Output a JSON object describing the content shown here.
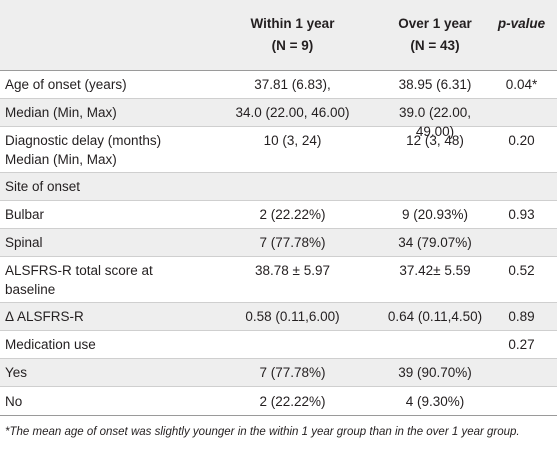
{
  "header": {
    "col1_title": "Within 1 year",
    "col1_n": "(N = 9)",
    "col2_title": "Over 1 year",
    "col2_n": "(N = 43)",
    "col3_title": "p-value"
  },
  "rows": [
    {
      "label": "Age of onset (years)",
      "within": "37.81 (6.83),",
      "over": "38.95 (6.31)",
      "p": "0.04*"
    },
    {
      "label": "Median (Min, Max)",
      "within": "34.0 (22.00, 46.00)",
      "over": "39.0 (22.00, 49.00)",
      "p": ""
    },
    {
      "label": "Diagnostic delay (months)",
      "label2": "Median (Min, Max)",
      "within": "10 (3, 24)",
      "over": "12 (3, 48)",
      "p": "0.20"
    },
    {
      "label": "Site of onset",
      "within": "",
      "over": "",
      "p": ""
    },
    {
      "label": "Bulbar",
      "within": "2 (22.22%)",
      "over": "9 (20.93%)",
      "p": "0.93"
    },
    {
      "label": "Spinal",
      "within": "7 (77.78%)",
      "over": "34 (79.07%)",
      "p": ""
    },
    {
      "label": "ALSFRS-R total score at",
      "label2": "baseline",
      "within": "38.78 ± 5.97",
      "over": "37.42± 5.59",
      "p": "0.52"
    },
    {
      "label": "Δ ALSFRS-R",
      "within": "0.58 (0.11,6.00)",
      "over": "0.64 (0.11,4.50)",
      "p": "0.89"
    },
    {
      "label": "Medication use",
      "within": "",
      "over": "",
      "p": "0.27"
    },
    {
      "label": "Yes",
      "within": "7 (77.78%)",
      "over": "39 (90.70%)",
      "p": ""
    },
    {
      "label": "No",
      "within": "2 (22.22%)",
      "over": "4 (9.30%)",
      "p": ""
    }
  ],
  "footnote": "*The mean age of onset was slightly younger in the within 1 year group than in the over 1 year group."
}
